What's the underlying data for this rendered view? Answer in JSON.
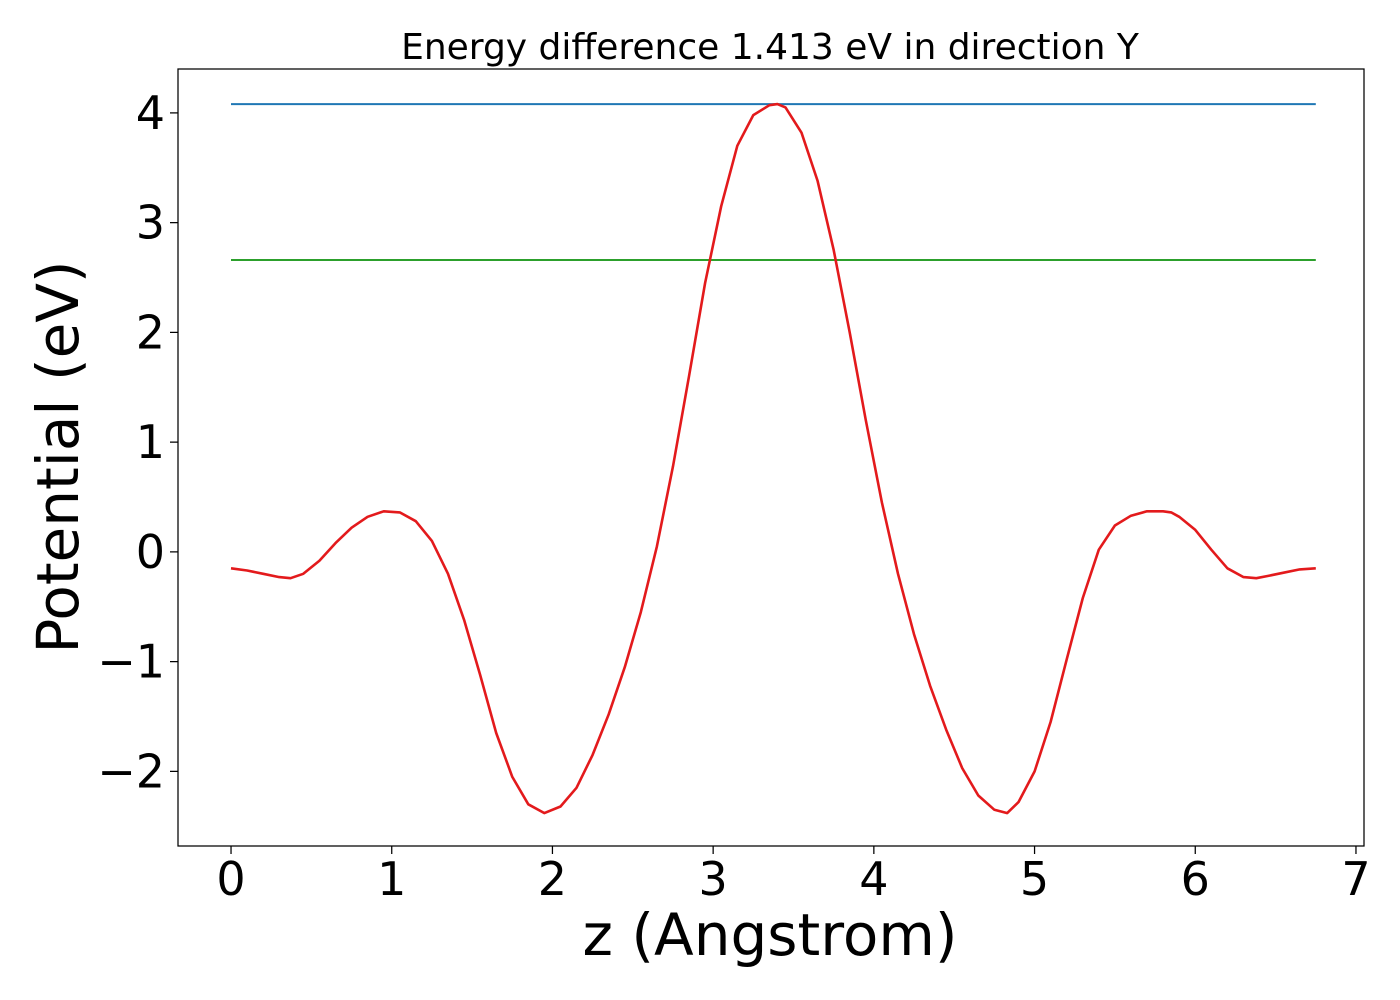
{
  "chart_data": {
    "type": "line",
    "title": "Energy difference 1.413 eV in direction Y",
    "xlabel": "z (Angstrom)",
    "ylabel": "Potential (eV)",
    "xlim": [
      -0.33,
      7.05
    ],
    "ylim": [
      -2.68,
      4.4
    ],
    "x_ticks": [
      0,
      1,
      2,
      3,
      4,
      5,
      6,
      7
    ],
    "x_tick_labels": [
      "0",
      "1",
      "2",
      "3",
      "4",
      "5",
      "6",
      "7"
    ],
    "y_ticks": [
      -2,
      -1,
      0,
      1,
      2,
      3,
      4
    ],
    "y_tick_labels": [
      "−2",
      "−1",
      "0",
      "1",
      "2",
      "3",
      "4"
    ],
    "grid": false,
    "series": [
      {
        "color": "#1f77b4",
        "x": [
          0,
          6.75
        ],
        "y": [
          4.08,
          4.08
        ]
      },
      {
        "color": "#2ca02c",
        "x": [
          0,
          6.75
        ],
        "y": [
          2.66,
          2.66
        ]
      },
      {
        "color": "#e31a1c",
        "x": [
          0,
          0.1,
          0.2,
          0.3,
          0.37,
          0.45,
          0.55,
          0.65,
          0.75,
          0.85,
          0.95,
          1.05,
          1.15,
          1.25,
          1.35,
          1.45,
          1.55,
          1.65,
          1.75,
          1.85,
          1.95,
          2.05,
          2.15,
          2.25,
          2.35,
          2.45,
          2.55,
          2.65,
          2.75,
          2.85,
          2.95,
          3.05,
          3.15,
          3.25,
          3.35,
          3.4,
          3.45,
          3.55,
          3.65,
          3.75,
          3.85,
          3.95,
          4.05,
          4.15,
          4.25,
          4.35,
          4.45,
          4.55,
          4.65,
          4.75,
          4.83,
          4.9,
          5.0,
          5.1,
          5.2,
          5.3,
          5.4,
          5.5,
          5.6,
          5.7,
          5.8,
          5.85,
          5.9,
          6.0,
          6.1,
          6.2,
          6.3,
          6.38,
          6.45,
          6.55,
          6.65,
          6.75
        ],
        "y": [
          -0.15,
          -0.17,
          -0.2,
          -0.23,
          -0.24,
          -0.2,
          -0.08,
          0.08,
          0.22,
          0.32,
          0.37,
          0.36,
          0.28,
          0.1,
          -0.2,
          -0.62,
          -1.12,
          -1.65,
          -2.05,
          -2.3,
          -2.38,
          -2.32,
          -2.15,
          -1.85,
          -1.48,
          -1.05,
          -0.55,
          0.05,
          0.78,
          1.6,
          2.45,
          3.15,
          3.7,
          3.98,
          4.07,
          4.08,
          4.05,
          3.82,
          3.38,
          2.75,
          2.0,
          1.2,
          0.45,
          -0.2,
          -0.75,
          -1.22,
          -1.62,
          -1.97,
          -2.22,
          -2.35,
          -2.38,
          -2.28,
          -2.0,
          -1.55,
          -0.98,
          -0.42,
          0.02,
          0.24,
          0.33,
          0.37,
          0.37,
          0.36,
          0.32,
          0.2,
          0.02,
          -0.15,
          -0.23,
          -0.24,
          -0.22,
          -0.19,
          -0.16,
          -0.15
        ]
      }
    ]
  }
}
